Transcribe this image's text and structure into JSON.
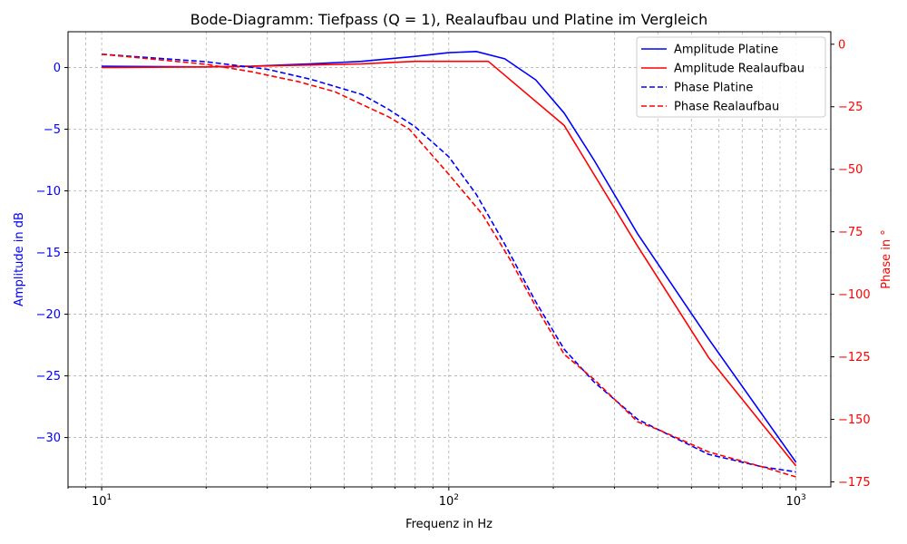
{
  "chart_data": {
    "type": "line",
    "title": "Bode-Diagramm: Tiefpass (Q = 1), Realaufbau und Platine im Vergleich",
    "xlabel": "Frequenz in Hz",
    "ylabel_left": "Amplitude in dB",
    "ylabel_right": "Phase in °",
    "x_scale": "log",
    "xlim": [
      8,
      1260
    ],
    "x_ticks": [
      10,
      100,
      1000
    ],
    "x_tick_labels": [
      "10",
      "10",
      "10"
    ],
    "x_tick_exponents": [
      "1",
      "2",
      "3"
    ],
    "ylim_left": [
      -34.0,
      2.9
    ],
    "y_ticks_left": [
      0,
      -5,
      -10,
      -15,
      -20,
      -25,
      -30
    ],
    "y_tick_labels_left": [
      "0",
      "−5",
      "−10",
      "−15",
      "−20",
      "−25",
      "−30"
    ],
    "ylim_right": [
      -177,
      5
    ],
    "y_ticks_right": [
      0,
      -25,
      -50,
      -75,
      -100,
      -125,
      -150,
      -175
    ],
    "y_tick_labels_right": [
      "0",
      "−25",
      "−50",
      "−75",
      "−100",
      "−125",
      "−150",
      "−175"
    ],
    "grid": true,
    "legend_position": "top-right",
    "series": [
      {
        "name": "Amplitude Platine",
        "axis": "left",
        "color": "#0000ff",
        "style": "solid",
        "x": [
          10,
          20,
          27,
          40,
          56,
          80,
          100,
          120,
          145,
          178,
          215,
          262,
          350,
          560,
          1000
        ],
        "y": [
          0.1,
          0.05,
          0.1,
          0.3,
          0.5,
          0.9,
          1.2,
          1.3,
          0.7,
          -1.0,
          -3.7,
          -7.5,
          -13.5,
          -22.0,
          -32.0
        ]
      },
      {
        "name": "Amplitude Realaufbau",
        "axis": "left",
        "color": "#ff0000",
        "style": "solid",
        "x": [
          10,
          20,
          27,
          40,
          56,
          80,
          100,
          130,
          215,
          350,
          560,
          1000
        ],
        "y": [
          0.0,
          0.05,
          0.1,
          0.2,
          0.3,
          0.5,
          0.5,
          0.5,
          -4.7,
          -14.5,
          -23.5,
          -32.3
        ]
      },
      {
        "name": "Phase Platine",
        "axis": "right",
        "color": "#0000ff",
        "style": "dashed",
        "x": [
          10,
          20,
          30,
          40,
          56,
          67,
          80,
          100,
          120,
          145,
          178,
          215,
          262,
          350,
          400,
          560,
          800,
          1000
        ],
        "y": [
          -4,
          -7,
          -10,
          -14,
          -20,
          -26,
          -33,
          -45,
          -60,
          -80,
          -103,
          -122,
          -135,
          -150,
          -154,
          -164,
          -169,
          -171
        ]
      },
      {
        "name": "Phase Realaufbau",
        "axis": "right",
        "color": "#ff0000",
        "style": "dashed",
        "x": [
          10,
          20,
          27,
          37,
          47,
          56,
          67,
          77,
          100,
          125,
          150,
          180,
          215,
          262,
          350,
          400,
          560,
          800,
          1000
        ],
        "y": [
          -4,
          -8,
          -11,
          -15,
          -19,
          -24,
          -29,
          -34,
          -52,
          -68,
          -86,
          -106,
          -124,
          -134,
          -151,
          -154,
          -163,
          -169,
          -173
        ]
      }
    ]
  }
}
